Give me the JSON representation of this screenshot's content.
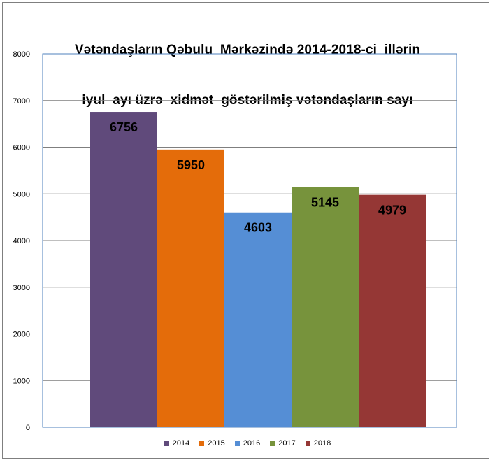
{
  "chart_data": {
    "type": "bar",
    "title_lines": [
      "Vətəndaşların Qəbulu  Mərkəzində 2014-2018-ci  illərin",
      "iyul  ayı üzrə  xidmət  göstərilmiş vətəndaşların sayı"
    ],
    "categories": [
      "2014",
      "2015",
      "2016",
      "2017",
      "2018"
    ],
    "values": [
      6756,
      5950,
      4603,
      5145,
      4979
    ],
    "colors": [
      "#604a7b",
      "#e46c0a",
      "#558ed5",
      "#77933c",
      "#953735"
    ],
    "xlabel": "",
    "ylabel": "",
    "ylim": [
      0,
      8000
    ],
    "y_ticks": [
      "0",
      "1000",
      "2000",
      "3000",
      "4000",
      "5000",
      "6000",
      "7000",
      "8000"
    ],
    "grid": true,
    "legend_position": "bottom",
    "plot_border_color": "#4f81bd",
    "grid_color": "#7f7f7f"
  }
}
